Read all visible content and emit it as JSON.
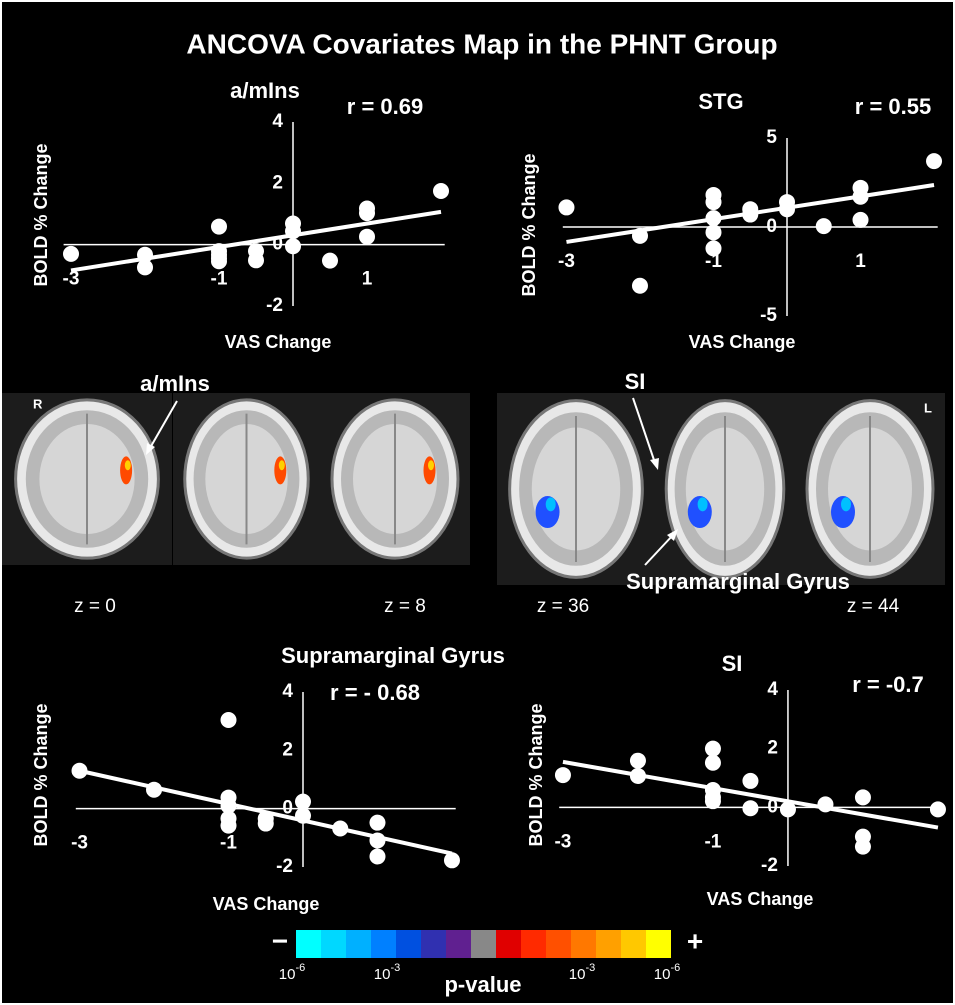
{
  "title": "ANCOVA Covariates Map in the PHNT Group",
  "chart_data": [
    {
      "type": "scatter",
      "title": "a/mIns",
      "annotation": "r = 0.69",
      "xlabel": "VAS Change",
      "ylabel": "BOLD % Change",
      "color": "#ffffff",
      "x": [
        -3.0,
        -2.0,
        -2.0,
        -1.0,
        -1.0,
        -1.0,
        -1.0,
        -1.0,
        -0.5,
        -0.5,
        0,
        0,
        0,
        0.5,
        1.0,
        1.0,
        1.0,
        2.0
      ],
      "y": [
        -0.3,
        -0.33,
        -0.74,
        0.59,
        -0.21,
        -0.33,
        -0.44,
        -0.54,
        -0.21,
        -0.51,
        0.69,
        0.44,
        -0.05,
        -0.52,
        1.18,
        1.03,
        0.26,
        1.75
      ],
      "trendline": {
        "x": [
          -3.0,
          2.0
        ],
        "y": [
          -0.84,
          1.07
        ]
      },
      "xlim": [
        -3.1,
        2.05
      ],
      "ylim": [
        -2,
        4
      ],
      "xticks": [
        -3,
        -1,
        1
      ],
      "yticks": [
        -2,
        0,
        2,
        4
      ]
    },
    {
      "type": "scatter",
      "title": "STG",
      "annotation": "r = 0.55",
      "xlabel": "VAS Change",
      "ylabel": "BOLD % Change",
      "color": "#ffffff",
      "x": [
        -3.0,
        -2.0,
        -2.0,
        -1.0,
        -1.0,
        -1.0,
        -1.0,
        -1.0,
        -0.5,
        -0.5,
        0,
        0,
        0.5,
        1.0,
        1.0,
        1.0,
        2.0
      ],
      "y": [
        1.1,
        -0.5,
        -3.3,
        1.8,
        1.4,
        0.5,
        -0.3,
        -1.2,
        1.0,
        0.7,
        1.4,
        1.0,
        0.05,
        2.2,
        1.7,
        0.4,
        3.7
      ],
      "trendline": {
        "x": [
          -3.0,
          2.0
        ],
        "y": [
          -0.84,
          2.36
        ]
      },
      "xlim": [
        -3.05,
        2.05
      ],
      "ylim": [
        -5,
        5
      ],
      "xticks": [
        -3,
        -1,
        1
      ],
      "yticks": [
        -5,
        0,
        5
      ]
    },
    {
      "type": "scatter",
      "title": "Supramarginal Gyrus",
      "annotation": "r = - 0.68",
      "xlabel": "VAS Change",
      "ylabel": "BOLD % Change",
      "color": "#ffffff",
      "x": [
        -3.0,
        -2.0,
        -1.0,
        -1.0,
        -1.0,
        -1.0,
        -1.0,
        -0.5,
        -0.5,
        0,
        0,
        0.5,
        1.0,
        1.0,
        1.0,
        2.0
      ],
      "y": [
        1.3,
        0.65,
        3.04,
        0.38,
        0.1,
        -0.34,
        -0.58,
        -0.34,
        -0.51,
        0.24,
        -0.24,
        -0.68,
        -0.48,
        -1.09,
        -1.64,
        -1.77
      ],
      "trendline": {
        "x": [
          -3.0,
          2.0
        ],
        "y": [
          1.3,
          -1.54
        ]
      },
      "xlim": [
        -3.05,
        2.05
      ],
      "ylim": [
        -2,
        4
      ],
      "xticks": [
        -3,
        -1
      ],
      "yticks": [
        -2,
        0,
        2,
        4
      ]
    },
    {
      "type": "scatter",
      "title": "SI",
      "annotation": "r = -0.7",
      "xlabel": "VAS Change",
      "ylabel": "BOLD % Change",
      "color": "#ffffff",
      "x": [
        -3.0,
        -2.0,
        -2.0,
        -1.0,
        -1.0,
        -1.0,
        -1.0,
        -1.0,
        -0.5,
        -0.5,
        0,
        0.5,
        1.0,
        1.0,
        1.0,
        2.0
      ],
      "y": [
        1.1,
        1.59,
        1.07,
        2.0,
        1.52,
        0.59,
        0.34,
        0.21,
        0.9,
        -0.03,
        -0.07,
        0.1,
        0.34,
        -1.0,
        -1.34,
        -0.07
      ],
      "trendline": {
        "x": [
          -3.0,
          2.0
        ],
        "y": [
          1.55,
          -0.69
        ]
      },
      "xlim": [
        -3.05,
        2.05
      ],
      "ylim": [
        -2,
        4
      ],
      "xticks": [
        -3,
        -1
      ],
      "yticks": [
        -2,
        0,
        2,
        4
      ]
    }
  ],
  "brain": {
    "left_label": "R",
    "right_label": "L",
    "insula_label": "a/mIns",
    "si_label": "SI",
    "smg_label": "Supramarginal Gyrus",
    "slices": [
      "z = 0",
      "z = 8",
      "z = 36",
      "z = 44"
    ]
  },
  "colorbar": {
    "minus": "−",
    "plus": "+",
    "title": "p-value",
    "colors": [
      "#00ffff",
      "#00d8ff",
      "#00b0ff",
      "#0080ff",
      "#0050e0",
      "#3030b0",
      "#602090",
      "#888888",
      "#e00000",
      "#ff2a00",
      "#ff5000",
      "#ff7800",
      "#ffa000",
      "#ffc800",
      "#ffff00"
    ],
    "labels": [
      {
        "base": "10",
        "exp": "-6"
      },
      {
        "base": "10",
        "exp": "-3"
      },
      {
        "base": "10",
        "exp": "-3"
      },
      {
        "base": "10",
        "exp": "-6"
      }
    ]
  }
}
